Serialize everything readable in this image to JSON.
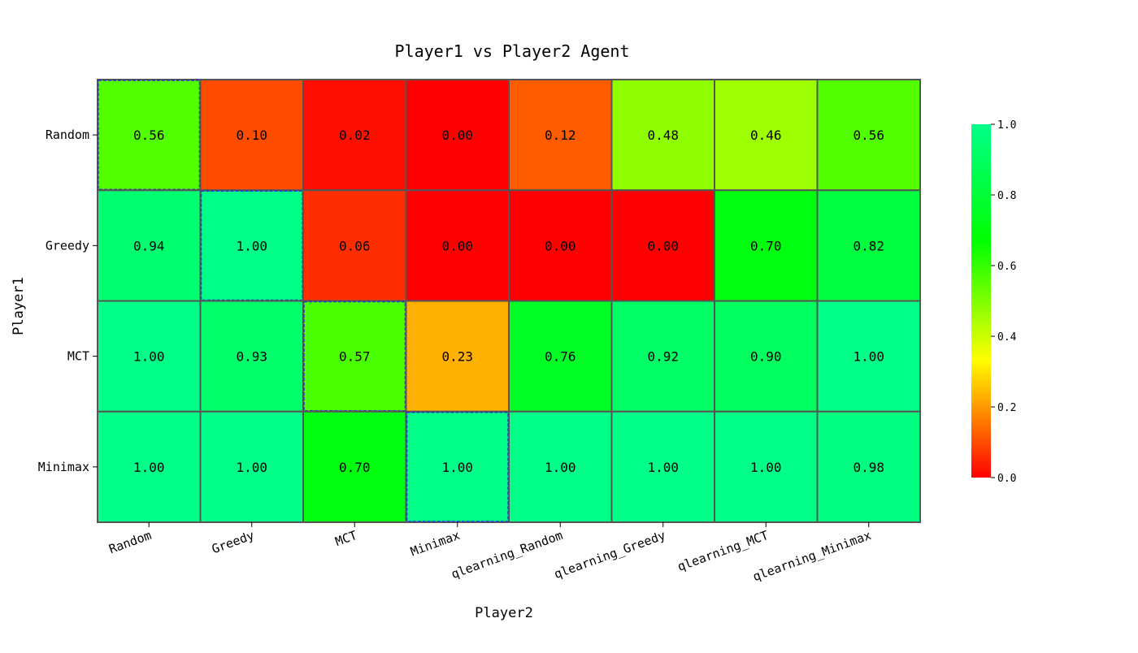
{
  "chart_data": {
    "type": "heatmap",
    "title": "Player1 vs Player2 Agent",
    "xlabel": "Player2",
    "ylabel": "Player1",
    "x_categories": [
      "Random",
      "Greedy",
      "MCT",
      "Minimax",
      "qlearning_Random",
      "qlearning_Greedy",
      "qlearning_MCT",
      "qlearning_Minimax"
    ],
    "y_categories": [
      "Random",
      "Greedy",
      "MCT",
      "Minimax"
    ],
    "values": [
      [
        0.56,
        0.1,
        0.02,
        0.0,
        0.12,
        0.48,
        0.46,
        0.56
      ],
      [
        0.94,
        1.0,
        0.06,
        0.0,
        0.0,
        0.0,
        0.7,
        0.82
      ],
      [
        1.0,
        0.93,
        0.57,
        0.23,
        0.76,
        0.92,
        0.9,
        1.0
      ],
      [
        1.0,
        1.0,
        0.7,
        1.0,
        1.0,
        1.0,
        1.0,
        0.98
      ]
    ],
    "value_format": "0.00",
    "highlight_diagonal": true,
    "colorbar": {
      "range": [
        0,
        1
      ],
      "ticks": [
        "0.0",
        "0.2",
        "0.4",
        "0.6",
        "0.8",
        "1.0"
      ],
      "colors": [
        "#ff0000",
        "#ffff00",
        "#00ff00",
        "#00ff88"
      ],
      "position": "right"
    },
    "cell_border_color": "#555555",
    "diagonal_border_color": "#3333cc"
  }
}
